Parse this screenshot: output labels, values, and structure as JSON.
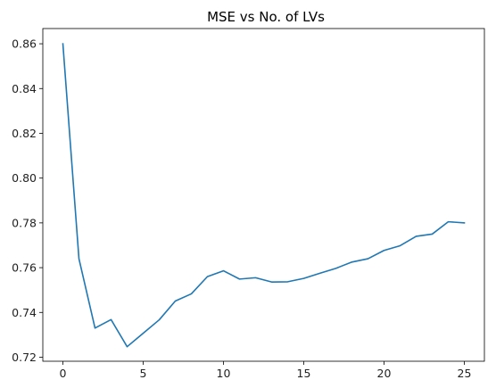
{
  "chart_data": {
    "type": "line",
    "title": "MSE vs No. of LVs",
    "xlabel": "",
    "ylabel": "",
    "xlim": [
      -1.25,
      26.25
    ],
    "ylim": [
      0.7182,
      0.8668
    ],
    "xticks": [
      0,
      5,
      10,
      15,
      20,
      25
    ],
    "xtick_labels": [
      "0",
      "5",
      "10",
      "15",
      "20",
      "25"
    ],
    "yticks": [
      0.72,
      0.74,
      0.76,
      0.78,
      0.8,
      0.82,
      0.84,
      0.86
    ],
    "ytick_labels": [
      "0.72",
      "0.74",
      "0.76",
      "0.78",
      "0.80",
      "0.82",
      "0.84",
      "0.86"
    ],
    "grid": false,
    "series": [
      {
        "color": "#1f77b4",
        "x": [
          0,
          1,
          2,
          3,
          4,
          5,
          6,
          7,
          8,
          9,
          10,
          11,
          12,
          13,
          14,
          15,
          16,
          17,
          18,
          19,
          20,
          21,
          22,
          23,
          24,
          25
        ],
        "y": [
          0.86,
          0.764,
          0.733,
          0.7368,
          0.7247,
          0.7307,
          0.7367,
          0.7451,
          0.7483,
          0.756,
          0.7586,
          0.7549,
          0.7555,
          0.7536,
          0.7537,
          0.7552,
          0.7575,
          0.7597,
          0.7625,
          0.764,
          0.7677,
          0.7698,
          0.774,
          0.775,
          0.7805,
          0.78
        ]
      }
    ]
  }
}
